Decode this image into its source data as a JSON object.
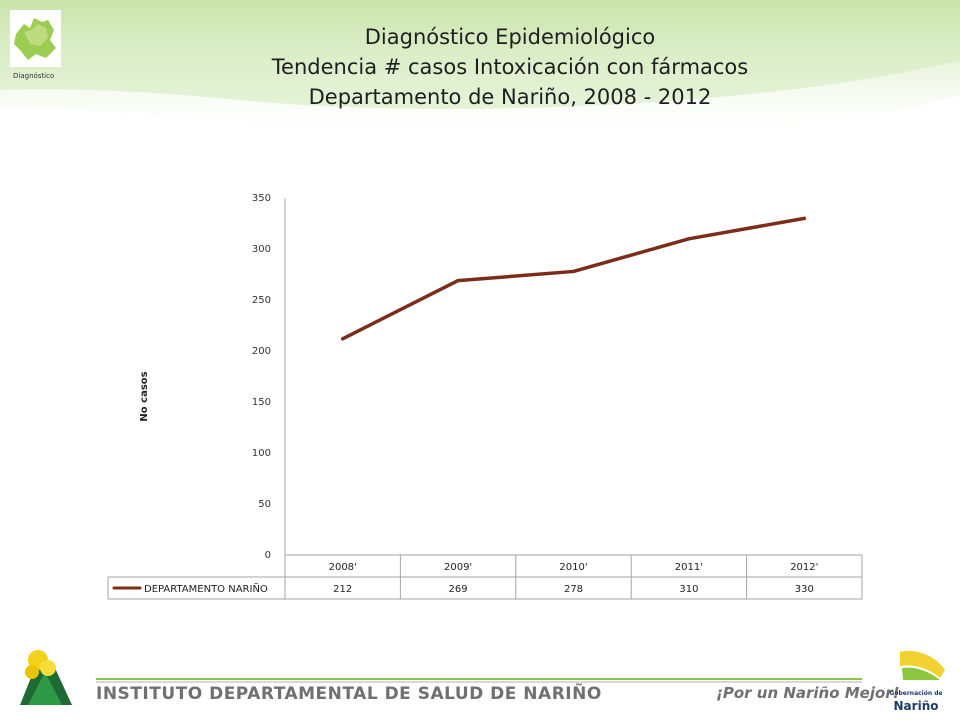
{
  "header": {
    "title_lines": [
      "Diagnóstico Epidemiológico",
      "Tendencia # casos Intoxicación con fármacos",
      "Departamento de Nariño,  2008 - 2012"
    ],
    "logo_caption": "Diagnóstico"
  },
  "footer": {
    "institute": "INSTITUTO DEPARTAMENTAL DE SALUD DE NARIÑO",
    "slogan": "¡Por un Nariño Mejor!",
    "gob_line1": "Gobernación de",
    "gob_line2": "Nariño"
  },
  "colors": {
    "series": "#7b2d1a",
    "accent_green": "#8dc63f",
    "yellow": "#f2d230",
    "navy": "#1d3c6b"
  },
  "chart_data": {
    "type": "line",
    "title": "",
    "xlabel": "",
    "ylabel": "No casos",
    "categories": [
      "2008'",
      "2009'",
      "2010'",
      "2011'",
      "2012'"
    ],
    "series": [
      {
        "name": "DEPARTAMENTO NARIÑO",
        "values": [
          212,
          269,
          278,
          310,
          330
        ]
      }
    ],
    "ylim": [
      0,
      350
    ],
    "yticks": [
      0,
      50,
      100,
      150,
      200,
      250,
      300,
      350
    ],
    "grid": false,
    "legend": "data-table"
  }
}
